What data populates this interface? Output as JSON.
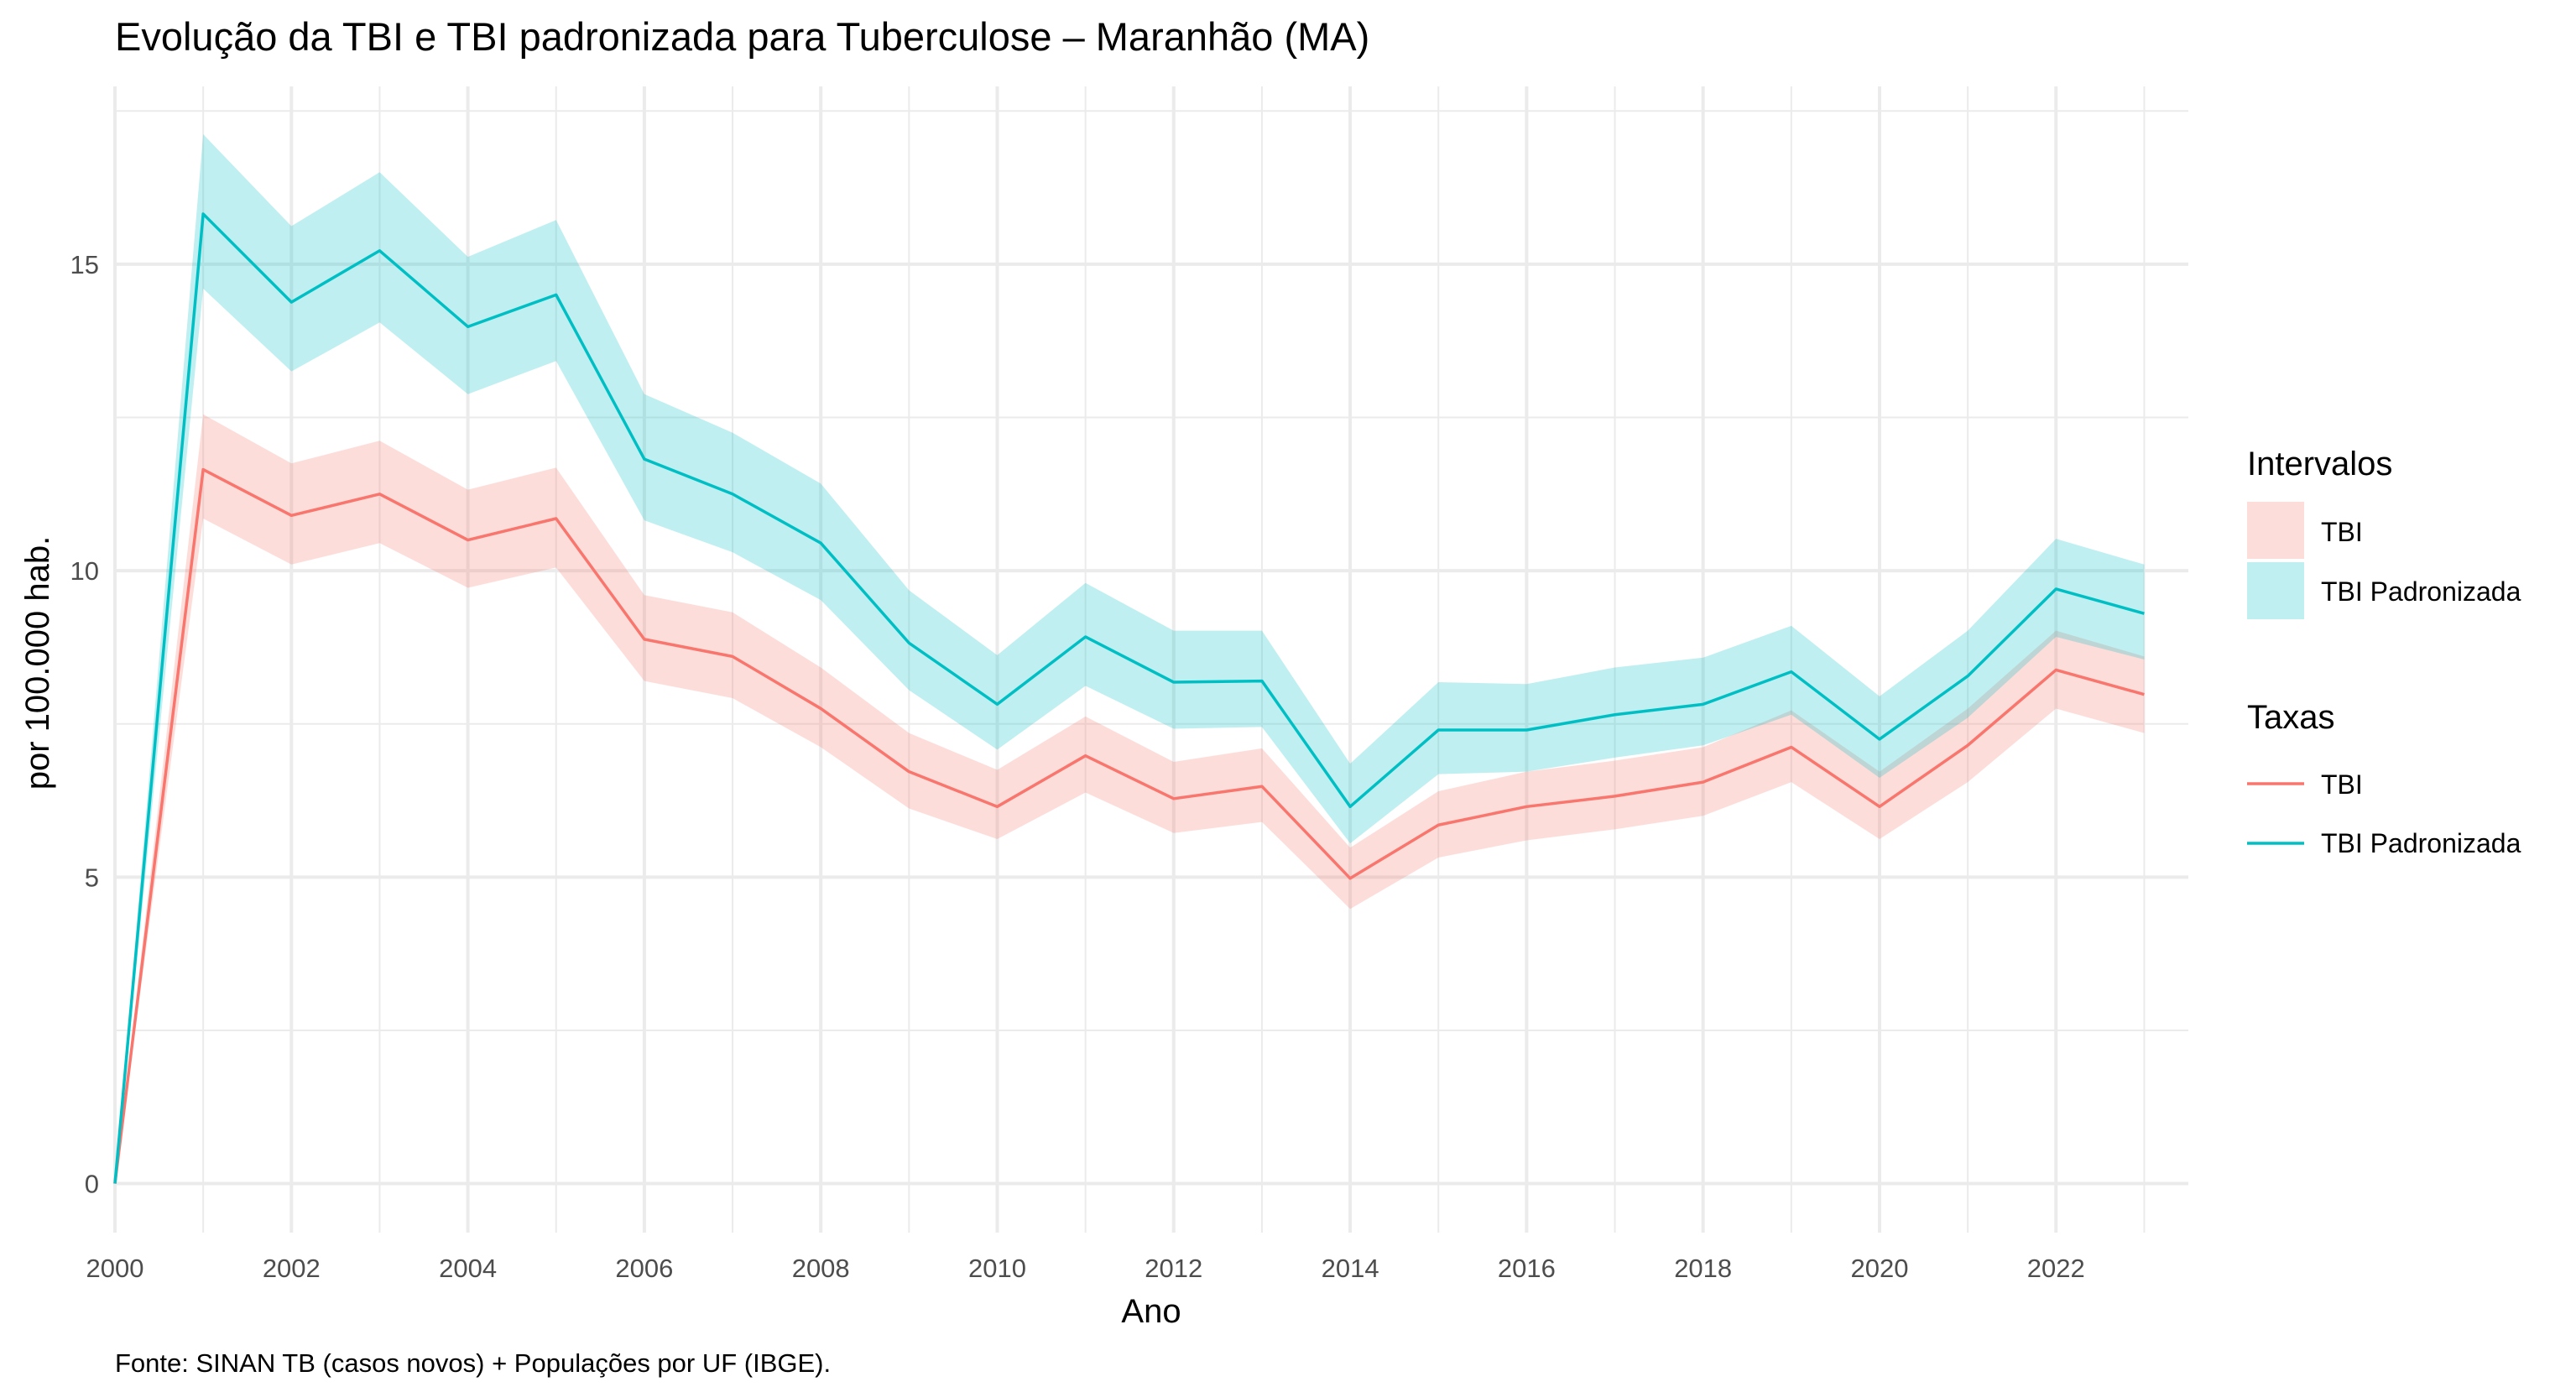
{
  "chart_data": {
    "type": "line",
    "title": "Evolução da TBI e TBI padronizada para Tuberculose – Maranhão (MA)",
    "xlabel": "Ano",
    "ylabel": "por 100.000 hab.",
    "caption": "Fonte: SINAN TB (casos novos) + Populações por UF (IBGE).",
    "xlim": [
      2000,
      2023.5
    ],
    "ylim": [
      -0.8,
      17.9
    ],
    "x_ticks": [
      "2000",
      "2002",
      "2004",
      "2006",
      "2008",
      "2010",
      "2012",
      "2014",
      "2016",
      "2018",
      "2020",
      "2022"
    ],
    "y_ticks": [
      "0",
      "5",
      "10",
      "15"
    ],
    "grid": true,
    "legend_position": "right",
    "x": [
      2000,
      2001,
      2002,
      2003,
      2004,
      2005,
      2006,
      2007,
      2008,
      2009,
      2010,
      2011,
      2012,
      2013,
      2014,
      2015,
      2016,
      2017,
      2018,
      2019,
      2020,
      2021,
      2022,
      2023
    ],
    "series": [
      {
        "name": "TBI",
        "color": "#F8766D",
        "values": [
          0,
          11.65,
          10.9,
          11.25,
          10.5,
          10.85,
          8.88,
          8.6,
          7.75,
          6.72,
          6.15,
          6.98,
          6.28,
          6.48,
          4.98,
          5.85,
          6.15,
          6.32,
          6.55,
          7.12,
          6.15,
          7.15,
          8.38,
          7.98
        ],
        "lower": [
          0,
          10.85,
          10.1,
          10.45,
          9.72,
          10.05,
          8.2,
          7.92,
          7.12,
          6.12,
          5.62,
          6.38,
          5.72,
          5.9,
          4.48,
          5.32,
          5.6,
          5.78,
          6.0,
          6.55,
          5.62,
          6.55,
          7.75,
          7.35
        ],
        "upper": [
          0,
          12.55,
          11.75,
          12.12,
          11.32,
          11.68,
          9.6,
          9.32,
          8.42,
          7.35,
          6.75,
          7.62,
          6.88,
          7.1,
          5.48,
          6.4,
          6.72,
          6.9,
          7.12,
          7.72,
          6.72,
          7.75,
          9.02,
          8.6
        ]
      },
      {
        "name": "TBI Padronizada",
        "color": "#00BFC4",
        "values": [
          0,
          15.82,
          14.38,
          15.22,
          13.98,
          14.5,
          11.82,
          11.25,
          10.45,
          8.82,
          7.82,
          8.92,
          8.18,
          8.2,
          6.15,
          7.4,
          7.4,
          7.65,
          7.82,
          8.35,
          7.25,
          8.28,
          9.7,
          9.3
        ],
        "lower": [
          0,
          14.6,
          13.25,
          14.05,
          12.88,
          13.42,
          10.82,
          10.3,
          9.52,
          8.05,
          7.08,
          8.12,
          7.42,
          7.45,
          5.55,
          6.68,
          6.72,
          6.95,
          7.15,
          7.65,
          6.62,
          7.6,
          8.92,
          8.55
        ],
        "upper": [
          0,
          17.12,
          15.62,
          16.5,
          15.12,
          15.72,
          12.88,
          12.25,
          11.42,
          9.68,
          8.62,
          9.8,
          9.02,
          9.02,
          6.85,
          8.18,
          8.15,
          8.42,
          8.58,
          9.1,
          7.95,
          9.02,
          10.52,
          10.1
        ]
      }
    ],
    "legend": {
      "intervals_title": "Intervalos",
      "rates_title": "Taxas",
      "items": [
        "TBI",
        "TBI Padronizada"
      ]
    }
  }
}
